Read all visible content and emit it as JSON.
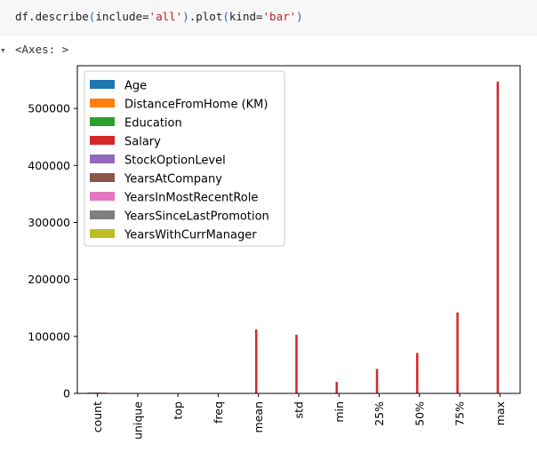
{
  "code_cell": {
    "prefix": "df.describe",
    "p1": "(",
    "arg1_name": "include=",
    "arg1_value": "'all'",
    "p2": ")",
    "mid": ".plot",
    "p3": "(",
    "arg2_name": "kind=",
    "arg2_value": "'bar'",
    "p4": ")"
  },
  "output": {
    "collapse_glyph": "▾",
    "repr": "<Axes: >"
  },
  "chart_data": {
    "type": "bar",
    "categories": [
      "count",
      "unique",
      "top",
      "freq",
      "mean",
      "std",
      "min",
      "25%",
      "50%",
      "75%",
      "max"
    ],
    "yticks": [
      0,
      100000,
      200000,
      300000,
      400000,
      500000
    ],
    "ylim": [
      0,
      575000
    ],
    "legend_position": "upper left",
    "grid": false,
    "series": [
      {
        "name": "Age",
        "color": "#1f77b4",
        "values": [
          1470,
          null,
          null,
          null,
          37,
          9,
          18,
          30,
          36,
          43,
          60
        ]
      },
      {
        "name": "DistanceFromHome (KM)",
        "color": "#ff7f0e",
        "values": [
          1470,
          null,
          null,
          null,
          23,
          14,
          1,
          11,
          22,
          34,
          45
        ]
      },
      {
        "name": "Education",
        "color": "#2ca02c",
        "values": [
          1470,
          null,
          null,
          null,
          3,
          1,
          1,
          2,
          3,
          4,
          5
        ]
      },
      {
        "name": "Salary",
        "color": "#d62728",
        "values": [
          1470,
          null,
          null,
          null,
          112000,
          103000,
          20000,
          43000,
          71000,
          142000,
          547000
        ]
      },
      {
        "name": "StockOptionLevel",
        "color": "#9467bd",
        "values": [
          1470,
          null,
          null,
          null,
          1,
          1,
          0,
          0,
          1,
          1,
          3
        ]
      },
      {
        "name": "YearsAtCompany",
        "color": "#8c564b",
        "values": [
          1470,
          null,
          null,
          null,
          5,
          4,
          0,
          2,
          4,
          7,
          10
        ]
      },
      {
        "name": "YearsInMostRecentRole",
        "color": "#e377c2",
        "values": [
          1470,
          null,
          null,
          null,
          2,
          3,
          0,
          0,
          1,
          4,
          10
        ]
      },
      {
        "name": "YearsSinceLastPromotion",
        "color": "#7f7f7f",
        "values": [
          1470,
          null,
          null,
          null,
          3,
          3,
          0,
          1,
          3,
          5,
          10
        ]
      },
      {
        "name": "YearsWithCurrManager",
        "color": "#bcbd22",
        "values": [
          1470,
          null,
          null,
          null,
          2,
          3,
          0,
          0,
          1,
          3,
          10
        ]
      }
    ]
  }
}
